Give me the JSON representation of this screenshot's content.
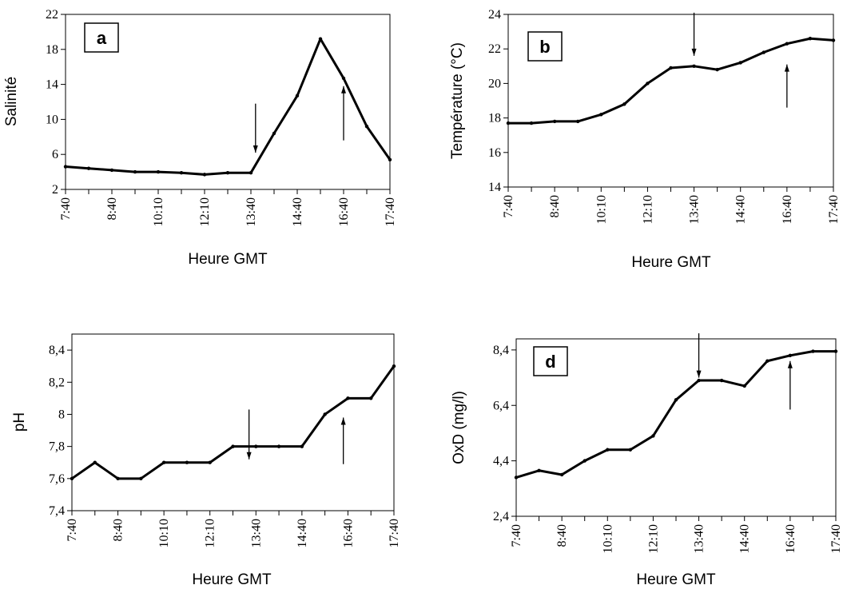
{
  "chart_data": [
    {
      "type": "line",
      "panel_label": "a",
      "xlabel": "Heure GMT",
      "ylabel": "Salinité",
      "ylim": [
        2,
        22
      ],
      "yticks": [
        "2",
        "6",
        "10",
        "14",
        "18",
        "22"
      ],
      "ytick_values": [
        2,
        6,
        10,
        14,
        18,
        22
      ],
      "xtick_labels": [
        "7:40",
        "8:40",
        "10:10",
        "12:10",
        "13:40",
        "14:40",
        "16:40",
        "17:40"
      ],
      "xtick_index": [
        0,
        2,
        4,
        6,
        8,
        10,
        12,
        14
      ],
      "values": [
        4.6,
        4.4,
        4.2,
        4.0,
        4.0,
        3.9,
        3.7,
        3.9,
        3.9,
        8.4,
        12.7,
        19.2,
        14.7,
        9.2,
        5.4
      ],
      "arrows": [
        {
          "x_index": 8.2,
          "y_from": 11.8,
          "y_to": 6.2,
          "direction": "down"
        },
        {
          "x_index": 12.0,
          "y_from": 7.6,
          "y_to": 13.8,
          "direction": "up"
        }
      ],
      "grid": false
    },
    {
      "type": "line",
      "panel_label": "b",
      "xlabel": "Heure GMT",
      "ylabel": "Température (°C)",
      "ylim": [
        14,
        24
      ],
      "yticks": [
        "14",
        "16",
        "18",
        "20",
        "22",
        "24"
      ],
      "ytick_values": [
        14,
        16,
        18,
        20,
        22,
        24
      ],
      "xtick_labels": [
        "7:40",
        "8:40",
        "10:10",
        "12:10",
        "13:40",
        "14:40",
        "16:40",
        "17:40"
      ],
      "xtick_index": [
        0,
        2,
        4,
        6,
        8,
        10,
        12,
        14
      ],
      "values": [
        17.7,
        17.7,
        17.8,
        17.8,
        18.2,
        18.8,
        20.0,
        20.9,
        21.0,
        20.8,
        21.2,
        21.8,
        22.3,
        22.6,
        22.5
      ],
      "arrows": [
        {
          "x_index": 8.0,
          "y_from": 24.1,
          "y_to": 21.6,
          "direction": "down"
        },
        {
          "x_index": 12.0,
          "y_from": 18.6,
          "y_to": 21.1,
          "direction": "up"
        }
      ],
      "grid": false
    },
    {
      "type": "line",
      "panel_label": "",
      "xlabel": "Heure GMT",
      "ylabel": "pH",
      "ylim": [
        7.4,
        8.5
      ],
      "yticks": [
        "7,4",
        "7,6",
        "7,8",
        "8",
        "8,2",
        "8,4"
      ],
      "ytick_values": [
        7.4,
        7.6,
        7.8,
        8.0,
        8.2,
        8.4
      ],
      "xtick_labels": [
        "7:40",
        "8:40",
        "10:10",
        "12:10",
        "13:40",
        "14:40",
        "16:40",
        "17:40"
      ],
      "xtick_index": [
        0,
        2,
        4,
        6,
        8,
        10,
        12,
        14
      ],
      "values": [
        7.6,
        7.7,
        7.6,
        7.6,
        7.7,
        7.7,
        7.7,
        7.8,
        7.8,
        7.8,
        7.8,
        8.0,
        8.1,
        8.1,
        8.3
      ],
      "arrows": [
        {
          "x_index": 7.7,
          "y_from": 8.03,
          "y_to": 7.72,
          "direction": "down"
        },
        {
          "x_index": 11.8,
          "y_from": 7.69,
          "y_to": 7.98,
          "direction": "up"
        }
      ],
      "grid": false
    },
    {
      "type": "line",
      "panel_label": "d",
      "xlabel": "Heure GMT",
      "ylabel": "OxD  (mg/l)",
      "ylim": [
        2.4,
        8.8
      ],
      "yticks": [
        "2,4",
        "4,4",
        "6,4",
        "8,4"
      ],
      "ytick_values": [
        2.4,
        4.4,
        6.4,
        8.4
      ],
      "xtick_labels": [
        "7:40",
        "8:40",
        "10:10",
        "12:10",
        "13:40",
        "14:40",
        "16:40",
        "17:40"
      ],
      "xtick_index": [
        0,
        2,
        4,
        6,
        8,
        10,
        12,
        14
      ],
      "values": [
        3.8,
        4.05,
        3.9,
        4.4,
        4.8,
        4.8,
        5.3,
        6.6,
        7.3,
        7.3,
        7.1,
        8.0,
        8.2,
        8.35,
        8.35
      ],
      "arrows": [
        {
          "x_index": 8.0,
          "y_from": 9.0,
          "y_to": 7.4,
          "direction": "down"
        },
        {
          "x_index": 12.0,
          "y_from": 6.25,
          "y_to": 8.0,
          "direction": "up"
        }
      ],
      "grid": false
    }
  ]
}
